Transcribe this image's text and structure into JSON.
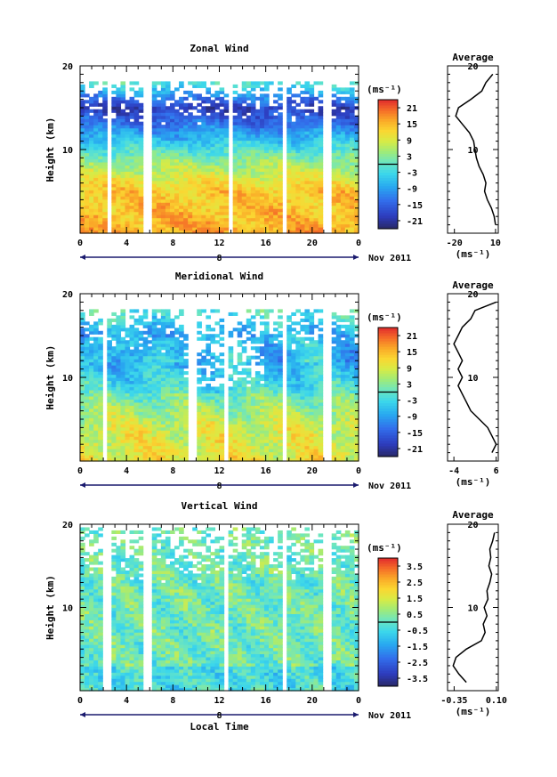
{
  "chart_data": [
    {
      "type": "heatmap",
      "title": "Zonal Wind",
      "ylabel": "Height (km)",
      "xlabel": "",
      "xticks": [
        "0",
        "4",
        "8",
        "12",
        "16",
        "20",
        "0"
      ],
      "xlim": [
        0,
        24
      ],
      "yticks": [
        "10",
        "20"
      ],
      "ylim": [
        0,
        20
      ],
      "date_marker": "8",
      "date_label": "Nov 2011",
      "unit": "(ms⁻¹)",
      "colorbar_ticks": [
        "21",
        "15",
        "9",
        "3",
        "-3",
        "-9",
        "-15",
        "-21"
      ],
      "colorbar_range": [
        -24,
        24
      ],
      "gap_columns_hours": [
        2.5,
        5.8,
        12.9,
        17.6,
        21.3
      ],
      "profile": {
        "title": "Average",
        "xticks": [
          "-20",
          "10"
        ],
        "xlim": [
          -25,
          12
        ],
        "xlabel": "(ms⁻¹)",
        "heights": [
          1,
          2,
          3,
          4,
          5,
          6,
          7,
          8,
          9,
          10,
          11,
          12,
          13,
          14,
          15,
          16,
          17,
          18,
          19
        ],
        "values": [
          10,
          9,
          7,
          4,
          2,
          3,
          1,
          -2,
          -4,
          -5,
          -6,
          -9,
          -14,
          -19,
          -17,
          -8,
          0,
          3,
          8
        ]
      }
    },
    {
      "type": "heatmap",
      "title": "Meridional Wind",
      "ylabel": "Height (km)",
      "xlabel": "",
      "xticks": [
        "0",
        "4",
        "8",
        "12",
        "16",
        "20",
        "0"
      ],
      "xlim": [
        0,
        24
      ],
      "yticks": [
        "10",
        "20"
      ],
      "ylim": [
        0,
        20
      ],
      "date_marker": "8",
      "date_label": "Nov 2011",
      "unit": "(ms⁻¹)",
      "colorbar_ticks": [
        "21",
        "15",
        "9",
        "3",
        "-3",
        "-9",
        "-15",
        "-21"
      ],
      "colorbar_range": [
        -24,
        24
      ],
      "gap_columns_hours": [
        2.2,
        9.7,
        12.7,
        17.6,
        21.3
      ],
      "profile": {
        "title": "Average",
        "xticks": [
          "-4",
          "6"
        ],
        "xlim": [
          -5.5,
          6.5
        ],
        "xlabel": "(ms⁻¹)",
        "heights": [
          1,
          2,
          3,
          4,
          5,
          6,
          7,
          8,
          9,
          10,
          11,
          12,
          13,
          14,
          15,
          16,
          17,
          18,
          19
        ],
        "values": [
          5,
          6,
          5,
          4,
          2,
          0,
          -1,
          -2,
          -3,
          -2,
          -3,
          -2,
          -3,
          -4,
          -3,
          -2,
          0,
          1,
          6
        ]
      }
    },
    {
      "type": "heatmap",
      "title": "Vertical Wind",
      "ylabel": "Height (km)",
      "xlabel": "Local Time",
      "xticks": [
        "0",
        "4",
        "8",
        "12",
        "16",
        "20",
        "0"
      ],
      "xlim": [
        0,
        24
      ],
      "yticks": [
        "10",
        "20"
      ],
      "ylim": [
        0,
        20
      ],
      "date_marker": "8",
      "date_label": "Nov 2011",
      "unit": "(ms⁻¹)",
      "colorbar_ticks": [
        "3.5",
        "2.5",
        "1.5",
        "0.5",
        "-0.5",
        "-1.5",
        "-2.5",
        "-3.5"
      ],
      "colorbar_range": [
        -4,
        4
      ],
      "gap_columns_hours": [
        2.3,
        5.8,
        12.6,
        17.6,
        21.3
      ],
      "profile": {
        "title": "Average",
        "xticks": [
          "-0.35",
          "0.10"
        ],
        "xlim": [
          -0.42,
          0.12
        ],
        "xlabel": "(ms⁻¹)",
        "heights": [
          1,
          2,
          3,
          4,
          5,
          6,
          7,
          8,
          9,
          10,
          11,
          12,
          13,
          14,
          15,
          16,
          17,
          18,
          19
        ],
        "values": [
          -0.22,
          -0.3,
          -0.36,
          -0.33,
          -0.22,
          -0.06,
          -0.02,
          -0.04,
          0.0,
          -0.03,
          0.01,
          0.0,
          0.03,
          0.05,
          0.02,
          0.04,
          0.03,
          0.06,
          0.08
        ]
      }
    }
  ]
}
